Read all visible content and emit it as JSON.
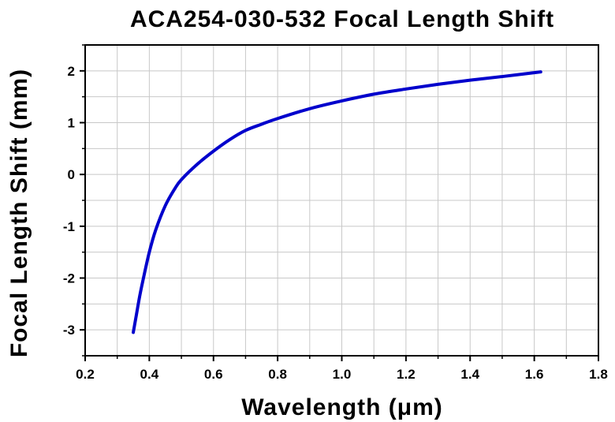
{
  "chart_data": {
    "type": "line",
    "title": "ACA254-030-532 Focal Length Shift",
    "xlabel": "Wavelength (μm)",
    "ylabel": "Focal Length Shift (mm)",
    "xlim": [
      0.2,
      1.8
    ],
    "ylim": [
      -3.5,
      2.5
    ],
    "x_ticks": [
      0.2,
      0.4,
      0.6,
      0.8,
      1.0,
      1.2,
      1.4,
      1.6,
      1.8
    ],
    "x_tick_labels": [
      "0.2",
      "0.4",
      "0.6",
      "0.8",
      "1.0",
      "1.2",
      "1.4",
      "1.6",
      "1.8"
    ],
    "y_ticks": [
      2,
      1,
      0,
      -1,
      -2,
      -3
    ],
    "y_tick_labels": [
      "2",
      "1",
      "0",
      "-1",
      "-2",
      "-3"
    ],
    "grid": true,
    "legend": "none",
    "series": [
      {
        "color": "#0000CC",
        "x": [
          0.35,
          0.36,
          0.37,
          0.38,
          0.4,
          0.42,
          0.45,
          0.48,
          0.5,
          0.55,
          0.6,
          0.65,
          0.7,
          0.75,
          0.8,
          0.9,
          1.0,
          1.1,
          1.2,
          1.3,
          1.4,
          1.5,
          1.62
        ],
        "y": [
          -3.05,
          -2.7,
          -2.35,
          -2.05,
          -1.5,
          -1.07,
          -0.6,
          -0.27,
          -0.1,
          0.2,
          0.45,
          0.67,
          0.85,
          0.97,
          1.08,
          1.27,
          1.42,
          1.55,
          1.65,
          1.74,
          1.82,
          1.89,
          1.98
        ]
      }
    ]
  }
}
